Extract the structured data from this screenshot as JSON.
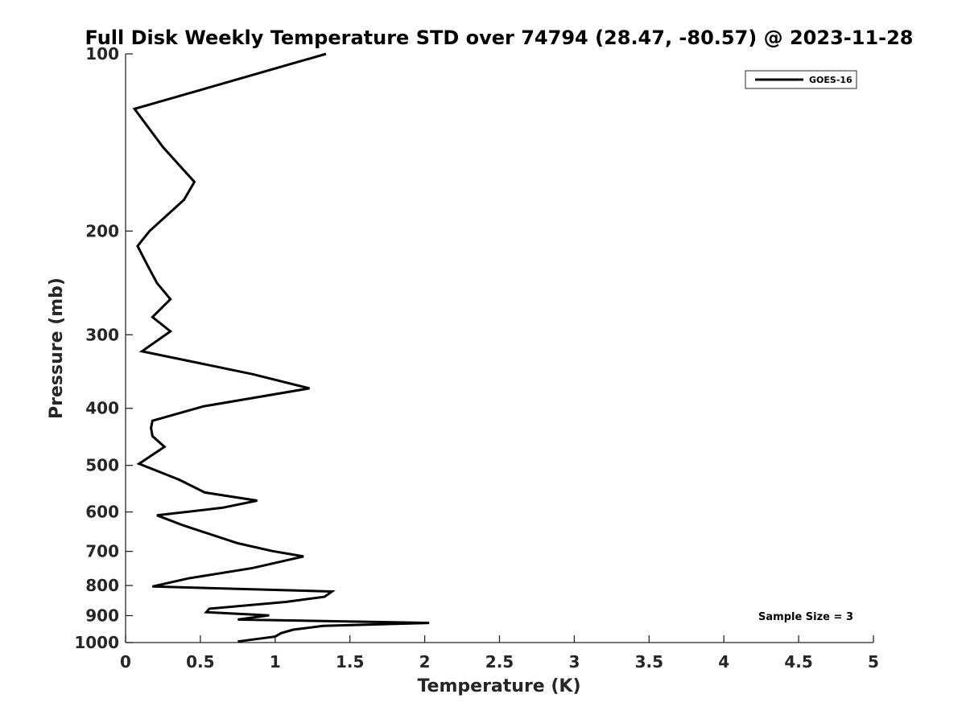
{
  "chart_data": {
    "type": "line",
    "title": "Full Disk Weekly Temperature STD over 74794 (28.47, -80.57) @ 2023-11-28",
    "xlabel": "Temperature (K)",
    "ylabel": "Pressure (mb)",
    "xlim": [
      0,
      5
    ],
    "ylim": [
      100,
      1000
    ],
    "y_scale": "log",
    "y_reversed": true,
    "x_ticks": [
      0,
      0.5,
      1,
      1.5,
      2,
      2.5,
      3,
      3.5,
      4,
      4.5,
      5
    ],
    "x_tick_labels": [
      "0",
      "0.5",
      "1",
      "1.5",
      "2",
      "2.5",
      "3",
      "3.5",
      "4",
      "4.5",
      "5"
    ],
    "y_ticks": [
      100,
      200,
      300,
      400,
      500,
      600,
      700,
      800,
      900,
      1000
    ],
    "y_tick_labels": [
      "100",
      "200",
      "300",
      "400",
      "500",
      "600",
      "700",
      "800",
      "900",
      "1000"
    ],
    "grid": false,
    "legend_position": "top-right",
    "annotation": "Sample Size = 3",
    "series": [
      {
        "name": "GOES-16",
        "color": "#000000",
        "points": [
          [
            1.34,
            100
          ],
          [
            0.06,
            124
          ],
          [
            0.25,
            144
          ],
          [
            0.46,
            165
          ],
          [
            0.39,
            177
          ],
          [
            0.16,
            200
          ],
          [
            0.08,
            212
          ],
          [
            0.14,
            227
          ],
          [
            0.21,
            245
          ],
          [
            0.3,
            261
          ],
          [
            0.18,
            280
          ],
          [
            0.3,
            296
          ],
          [
            0.11,
            320
          ],
          [
            0.85,
            350
          ],
          [
            1.23,
            370
          ],
          [
            0.52,
            397
          ],
          [
            0.18,
            420
          ],
          [
            0.17,
            432
          ],
          [
            0.18,
            446
          ],
          [
            0.26,
            465
          ],
          [
            0.09,
            497
          ],
          [
            0.36,
            529
          ],
          [
            0.53,
            556
          ],
          [
            0.88,
            574
          ],
          [
            0.65,
            590
          ],
          [
            0.21,
            608
          ],
          [
            0.39,
            633
          ],
          [
            0.75,
            678
          ],
          [
            0.98,
            699
          ],
          [
            1.19,
            714
          ],
          [
            0.85,
            747
          ],
          [
            0.42,
            778
          ],
          [
            0.18,
            803
          ],
          [
            1.38,
            819
          ],
          [
            1.33,
            836
          ],
          [
            1.07,
            853
          ],
          [
            0.56,
            876
          ],
          [
            0.54,
            888
          ],
          [
            0.96,
            899
          ],
          [
            0.75,
            914
          ],
          [
            2.03,
            926
          ],
          [
            1.32,
            937
          ],
          [
            1.12,
            951
          ],
          [
            1.04,
            964
          ],
          [
            1.0,
            977
          ],
          [
            0.75,
            996
          ]
        ]
      }
    ]
  }
}
